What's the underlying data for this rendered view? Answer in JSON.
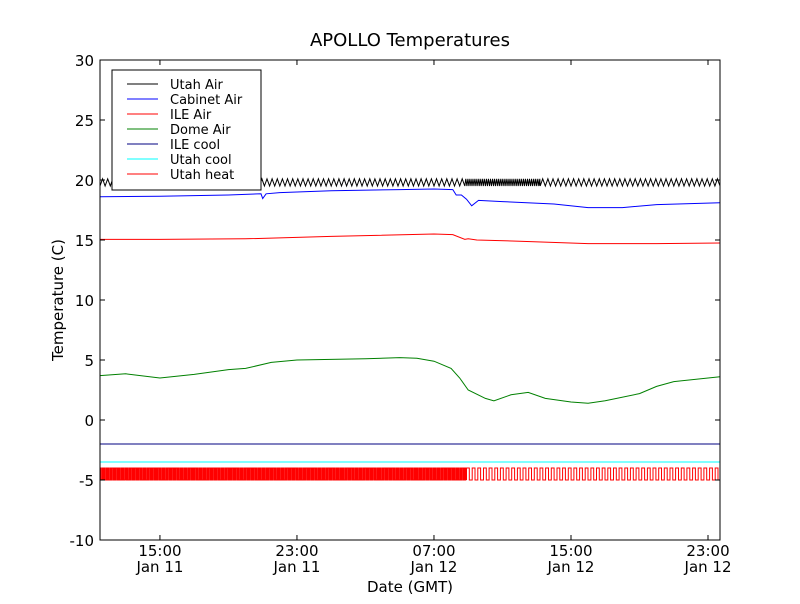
{
  "chart_data": {
    "type": "line",
    "title": "APOLLO Temperatures",
    "xlabel": "Date (GMT)",
    "ylabel": "Temperature (C)",
    "x_units": "hours since Jan 11 00:00 GMT",
    "xlim": [
      11.5,
      47.7
    ],
    "ylim": [
      -10,
      30
    ],
    "yticks": [
      -10,
      -5,
      0,
      5,
      10,
      15,
      20,
      25,
      30
    ],
    "ytick_labels": [
      "-10",
      "-5",
      "0",
      "5",
      "10",
      "15",
      "20",
      "25",
      "30"
    ],
    "xticks": [
      {
        "value": 15,
        "time": "15:00",
        "date": "Jan 11"
      },
      {
        "value": 23,
        "time": "23:00",
        "date": "Jan 11"
      },
      {
        "value": 31,
        "time": "07:00",
        "date": "Jan 12"
      },
      {
        "value": 39,
        "time": "15:00",
        "date": "Jan 12"
      },
      {
        "value": 47,
        "time": "23:00",
        "date": "Jan 12"
      }
    ],
    "grid": false,
    "legend_position": "top-left",
    "series": [
      {
        "name": "Utah Air",
        "color": "#000000",
        "kind": "oscillation",
        "low": 19.5,
        "high": 20.1,
        "segments": [
          {
            "from": 11.5,
            "to": 32.8,
            "period": 0.3
          },
          {
            "from": 32.8,
            "to": 37.2,
            "period": 0.12
          },
          {
            "from": 37.2,
            "to": 47.7,
            "period": 0.3
          }
        ]
      },
      {
        "name": "Cabinet Air",
        "color": "#0000ff",
        "x": [
          11.5,
          15,
          19,
          20.9,
          21.0,
          21.2,
          22,
          25,
          29,
          31,
          32.1,
          32.3,
          32.6,
          32.9,
          33.2,
          33.6,
          35,
          38,
          40,
          42,
          44,
          47.7
        ],
        "y": [
          18.6,
          18.65,
          18.75,
          18.85,
          18.45,
          18.85,
          18.95,
          19.1,
          19.2,
          19.25,
          19.2,
          18.75,
          18.75,
          18.4,
          17.85,
          18.3,
          18.2,
          18.0,
          17.7,
          17.7,
          17.95,
          18.1
        ]
      },
      {
        "name": "ILE Air",
        "color": "#ff0000",
        "x": [
          11.5,
          15,
          20,
          25,
          31,
          32.1,
          32.8,
          33.0,
          33.5,
          36,
          40,
          44,
          47.7
        ],
        "y": [
          15.05,
          15.05,
          15.1,
          15.3,
          15.5,
          15.45,
          15.05,
          15.1,
          15.0,
          14.9,
          14.7,
          14.7,
          14.75
        ]
      },
      {
        "name": "Dome Air",
        "color": "#008000",
        "x": [
          11.5,
          13,
          15,
          17,
          19,
          20,
          21.5,
          23,
          27,
          29,
          30,
          31,
          32,
          32.5,
          33,
          34,
          34.5,
          35.5,
          36.5,
          37.5,
          39,
          40,
          41,
          43,
          44,
          45,
          47.7
        ],
        "y": [
          3.7,
          3.85,
          3.5,
          3.8,
          4.2,
          4.3,
          4.8,
          5.0,
          5.1,
          5.2,
          5.15,
          4.9,
          4.3,
          3.5,
          2.5,
          1.8,
          1.6,
          2.1,
          2.3,
          1.8,
          1.5,
          1.4,
          1.6,
          2.2,
          2.8,
          3.2,
          3.6
        ]
      },
      {
        "name": "ILE cool",
        "color": "#000080",
        "x": [
          11.5,
          47.7
        ],
        "y": [
          -2.0,
          -2.0
        ]
      },
      {
        "name": "Utah cool",
        "color": "#00ffff",
        "x": [
          11.5,
          47.7
        ],
        "y": [
          -3.5,
          -3.5
        ]
      },
      {
        "name": "Utah heat",
        "color": "#ff0000",
        "kind": "square",
        "low": -5.0,
        "high": -4.0,
        "segments": [
          {
            "from": 11.5,
            "to": 32.9,
            "period": 0.12
          },
          {
            "from": 32.9,
            "to": 47.7,
            "period": 0.33
          }
        ]
      }
    ]
  }
}
